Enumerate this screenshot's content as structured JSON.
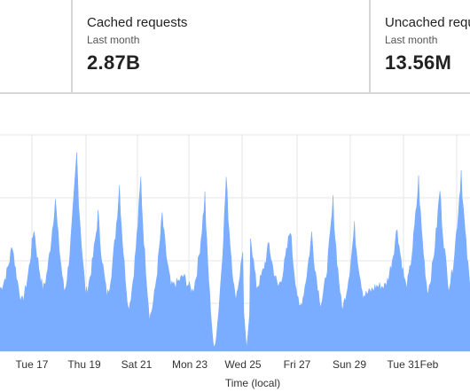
{
  "stats": [
    {
      "title": "Cached requests",
      "period": "Last month",
      "value": "2.87B"
    },
    {
      "title": "Uncached reques",
      "period": "Last month",
      "value": "13.56M"
    }
  ],
  "chart_data": {
    "type": "area",
    "xlabel": "Time (local)",
    "ylabel": "",
    "title": "",
    "color": "#7aacff",
    "grid": true,
    "x_ticks": [
      "Tue 17",
      "Thu 19",
      "Sat 21",
      "Mon 23",
      "Wed 25",
      "Fri 27",
      "Sun 29",
      "Tue 31",
      "Feb"
    ],
    "peaks": [
      0.5,
      0.58,
      0.72,
      0.92,
      0.64,
      0.78,
      0.81,
      0.64,
      0.35,
      0.73,
      0.82,
      0.75,
      0.5,
      0.58,
      0.55,
      0.7,
      0.58,
      0.3,
      0.58,
      0.8,
      0.76,
      0.85
    ],
    "troughs": [
      0.29,
      0.23,
      0.29,
      0.28,
      0.27,
      0.26,
      0.2,
      0.16,
      0.3,
      0.28,
      0.01,
      0.25,
      0.3,
      0.3,
      0.2,
      0.22,
      0.2,
      0.26,
      0.3,
      0.3,
      0.28,
      0.3,
      0.3
    ],
    "dip": {
      "at": 0.525,
      "value": 0.01
    }
  }
}
